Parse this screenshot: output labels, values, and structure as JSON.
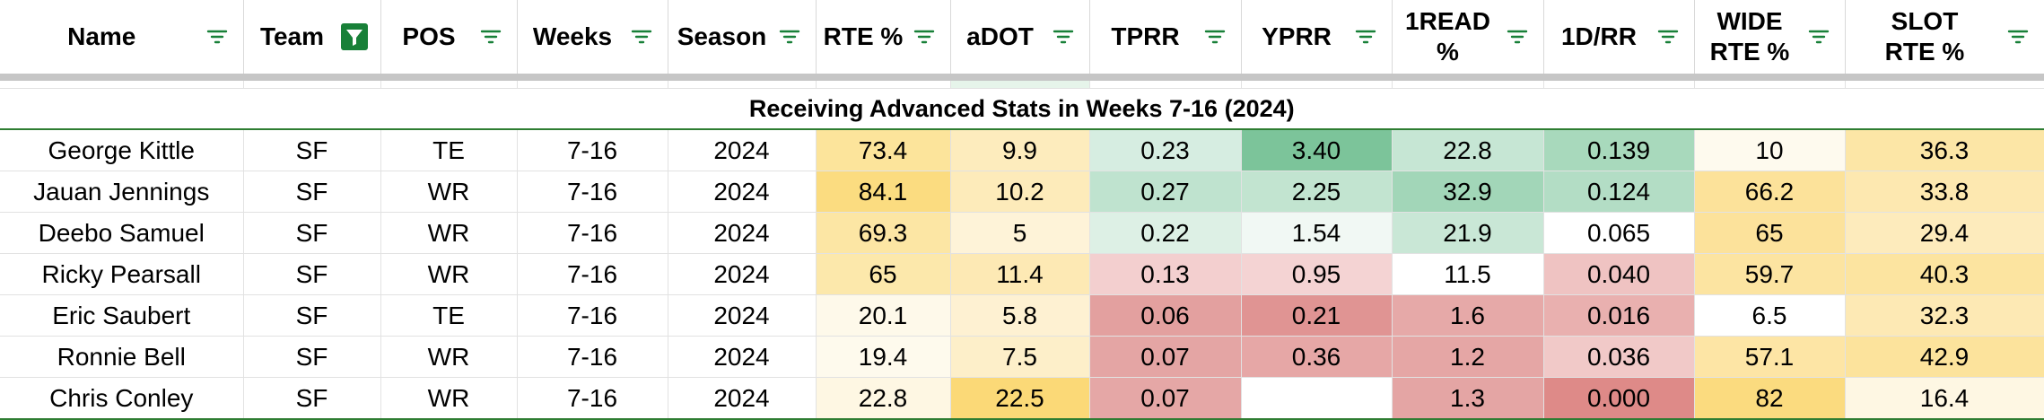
{
  "title": "Receiving Advanced Stats in Weeks 7-16 (2024)",
  "columns": [
    {
      "key": "name",
      "label": "Name",
      "filter_active": false
    },
    {
      "key": "team",
      "label": "Team",
      "filter_active": true
    },
    {
      "key": "pos",
      "label": "POS",
      "filter_active": false
    },
    {
      "key": "weeks",
      "label": "Weeks",
      "filter_active": false
    },
    {
      "key": "season",
      "label": "Season",
      "filter_active": false
    },
    {
      "key": "rte",
      "label": "RTE %",
      "filter_active": false
    },
    {
      "key": "adot",
      "label": "aDOT",
      "filter_active": false
    },
    {
      "key": "tprr",
      "label": "TPRR",
      "filter_active": false
    },
    {
      "key": "yprr",
      "label": "YPRR",
      "filter_active": false
    },
    {
      "key": "oneread",
      "label": "1READ\n%",
      "filter_active": false
    },
    {
      "key": "fdrr",
      "label": "1D/RR",
      "filter_active": false
    },
    {
      "key": "wide",
      "label": "WIDE\nRTE %",
      "filter_active": false
    },
    {
      "key": "slot",
      "label": "SLOT\nRTE %",
      "filter_active": false
    }
  ],
  "rows": [
    {
      "cells": [
        "George Kittle",
        "SF",
        "TE",
        "7-16",
        "2024",
        "73.4",
        "9.9",
        "0.23",
        "3.40",
        "22.8",
        "0.139",
        "10",
        "36.3"
      ],
      "colors": [
        "#ffffff",
        "#ffffff",
        "#ffffff",
        "#ffffff",
        "#ffffff",
        "#fce49b",
        "#fdecbd",
        "#d6ede1",
        "#7cc49a",
        "#c6e6d4",
        "#a8d9bc",
        "#fefaee",
        "#fce6a6"
      ]
    },
    {
      "cells": [
        "Jauan Jennings",
        "SF",
        "WR",
        "7-16",
        "2024",
        "84.1",
        "10.2",
        "0.27",
        "2.25",
        "32.9",
        "0.124",
        "66.2",
        "33.8"
      ],
      "colors": [
        "#ffffff",
        "#ffffff",
        "#ffffff",
        "#ffffff",
        "#ffffff",
        "#fbdc80",
        "#fdebba",
        "#bfe3cf",
        "#c2e4d0",
        "#a2d6b8",
        "#b3ddc5",
        "#fce29a",
        "#fde8b0"
      ]
    },
    {
      "cells": [
        "Deebo Samuel",
        "SF",
        "WR",
        "7-16",
        "2024",
        "69.3",
        "5",
        "0.22",
        "1.54",
        "21.9",
        "0.065",
        "65",
        "29.4"
      ],
      "colors": [
        "#ffffff",
        "#ffffff",
        "#ffffff",
        "#ffffff",
        "#ffffff",
        "#fce6a4",
        "#fef3d8",
        "#ddf0e5",
        "#f1f8f4",
        "#c9e7d6",
        "#ffffff",
        "#fce29b",
        "#fdebbc"
      ]
    },
    {
      "cells": [
        "Ricky Pearsall",
        "SF",
        "WR",
        "7-16",
        "2024",
        "65",
        "11.4",
        "0.13",
        "0.95",
        "11.5",
        "0.040",
        "59.7",
        "40.3"
      ],
      "colors": [
        "#ffffff",
        "#ffffff",
        "#ffffff",
        "#ffffff",
        "#ffffff",
        "#fce8ab",
        "#fde9b4",
        "#f3cfcf",
        "#f4d3d3",
        "#ffffff",
        "#efc3c2",
        "#fce4a1",
        "#fce4a0"
      ]
    },
    {
      "cells": [
        "Eric Saubert",
        "SF",
        "TE",
        "7-16",
        "2024",
        "20.1",
        "5.8",
        "0.06",
        "0.21",
        "1.6",
        "0.016",
        "6.5",
        "32.3"
      ],
      "colors": [
        "#ffffff",
        "#ffffff",
        "#ffffff",
        "#ffffff",
        "#ffffff",
        "#fef9ea",
        "#fef1d2",
        "#e3a09f",
        "#e09493",
        "#e6a9a8",
        "#e9b0af",
        "#ffffff",
        "#fde9b4"
      ]
    },
    {
      "cells": [
        "Ronnie Bell",
        "SF",
        "WR",
        "7-16",
        "2024",
        "19.4",
        "7.5",
        "0.07",
        "0.36",
        "1.2",
        "0.036",
        "57.1",
        "42.9"
      ],
      "colors": [
        "#ffffff",
        "#ffffff",
        "#ffffff",
        "#ffffff",
        "#ffffff",
        "#fefaed",
        "#fdefc9",
        "#e4a5a4",
        "#e6a7a6",
        "#e5a6a5",
        "#f1c9c8",
        "#fde5a5",
        "#fce39c"
      ]
    },
    {
      "cells": [
        "Chris Conley",
        "SF",
        "WR",
        "7-16",
        "2024",
        "22.8",
        "22.5",
        "0.07",
        "",
        "1.3",
        "0.000",
        "82",
        "16.4"
      ],
      "colors": [
        "#ffffff",
        "#ffffff",
        "#ffffff",
        "#ffffff",
        "#ffffff",
        "#fef7e3",
        "#fbd977",
        "#e5a7a6",
        "#ffffff",
        "#e4a5a4",
        "#de8a88",
        "#fbdb7f",
        "#fef7e3"
      ]
    }
  ],
  "icons": {
    "filter": "filter-lines-icon",
    "filter_active": "funnel-filter-icon"
  },
  "accent": "#188038"
}
